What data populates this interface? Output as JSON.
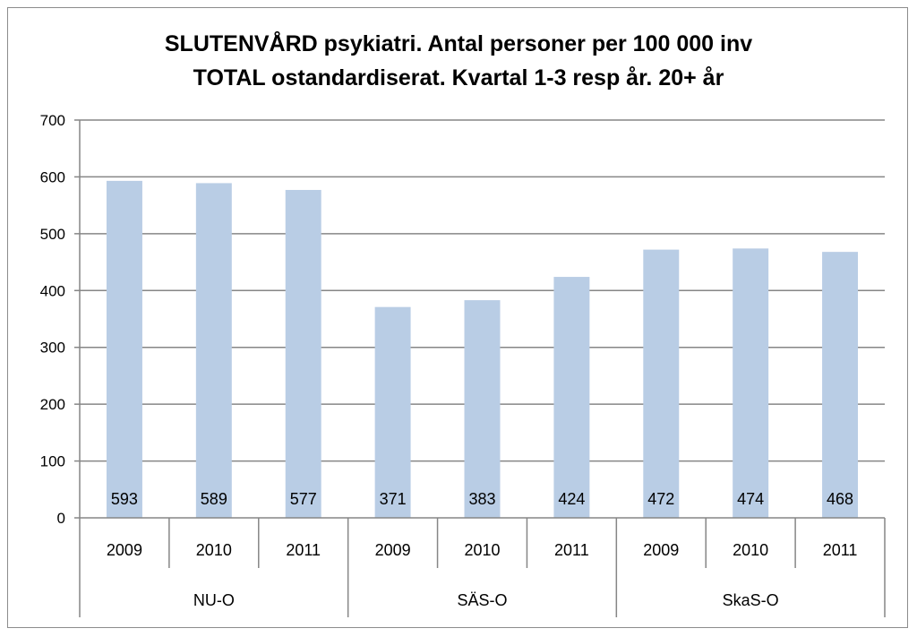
{
  "chart_data": {
    "type": "bar",
    "title": [
      "SLUTENVÅRD psykiatri. Antal personer per 100 000 inv",
      "TOTAL ostandardiserat. Kvartal 1-3 resp år. 20+ år"
    ],
    "xlabel": "",
    "ylabel": "",
    "ylim": [
      0,
      700
    ],
    "yticks": [
      0,
      100,
      200,
      300,
      400,
      500,
      600,
      700
    ],
    "grid": true,
    "legend": "none",
    "groups": [
      {
        "name": "NU-O",
        "categories": [
          "2009",
          "2010",
          "2011"
        ],
        "values": [
          593,
          589,
          577
        ]
      },
      {
        "name": "SÄS-O",
        "categories": [
          "2009",
          "2010",
          "2011"
        ],
        "values": [
          371,
          383,
          424
        ]
      },
      {
        "name": "SkaS-O",
        "categories": [
          "2009",
          "2010",
          "2011"
        ],
        "values": [
          472,
          474,
          468
        ]
      }
    ],
    "colors": {
      "bar": "#b9cde5",
      "grid": "#868686",
      "axis": "#868686"
    }
  }
}
